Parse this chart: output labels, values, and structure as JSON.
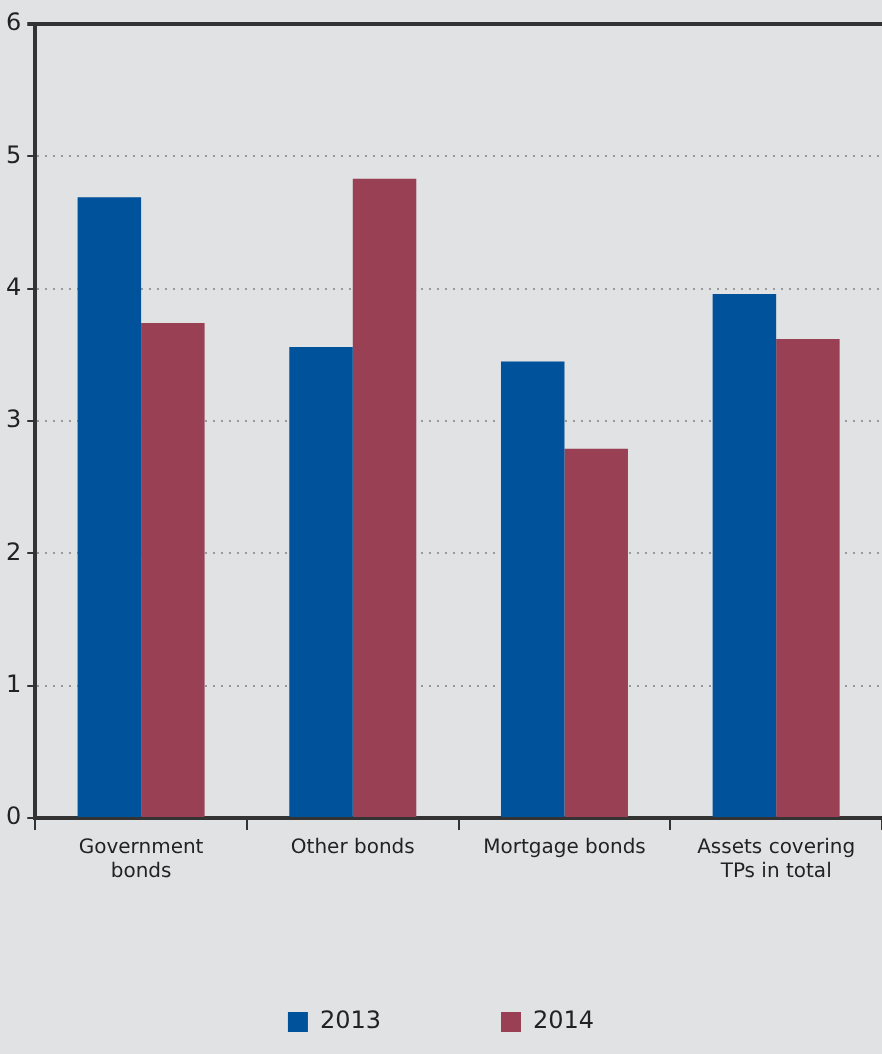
{
  "chart_data": {
    "type": "bar",
    "categories": [
      "Government bonds",
      "Other bonds",
      "Mortgage bonds",
      "Assets covering TPs in total"
    ],
    "series": [
      {
        "name": "2013",
        "color": "#00529b",
        "values": [
          4.69,
          3.56,
          3.45,
          3.96
        ]
      },
      {
        "name": "2014",
        "color": "#9a4055",
        "values": [
          3.74,
          4.83,
          2.79,
          3.62
        ]
      }
    ],
    "ylim": [
      0,
      6
    ],
    "yticks": [
      0,
      1,
      2,
      3,
      4,
      5,
      6
    ],
    "grid": "y",
    "legend": "bottom"
  }
}
